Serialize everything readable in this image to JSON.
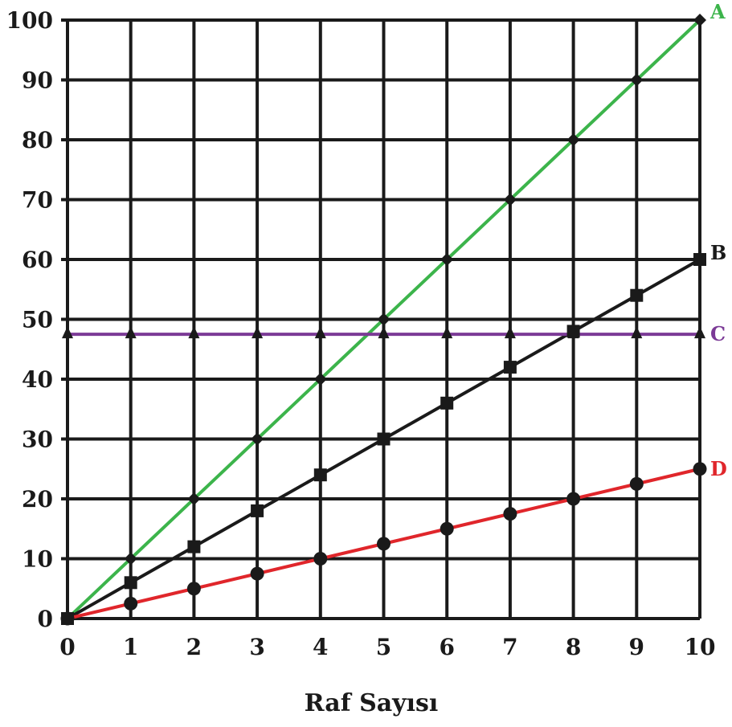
{
  "chart_data": {
    "type": "line",
    "title": "",
    "xlabel": "Raf Sayısı",
    "ylabel": "",
    "xlim": [
      0,
      10
    ],
    "ylim": [
      0,
      100
    ],
    "grid": true,
    "x": [
      0,
      1,
      2,
      3,
      4,
      5,
      6,
      7,
      8,
      9,
      10
    ],
    "x_ticks": [
      "0",
      "1",
      "2",
      "3",
      "4",
      "5",
      "6",
      "7",
      "8",
      "9",
      "10"
    ],
    "y_ticks": [
      "0",
      "10",
      "20",
      "30",
      "40",
      "50",
      "60",
      "70",
      "80",
      "90",
      "100"
    ],
    "series": [
      {
        "name": "A",
        "color": "#3cb44b",
        "marker": "diamond",
        "values": [
          0,
          10,
          20,
          30,
          40,
          50,
          60,
          70,
          80,
          90,
          100
        ]
      },
      {
        "name": "B",
        "color": "#1a1a1a",
        "marker": "square",
        "values": [
          0,
          6,
          12,
          18,
          24,
          30,
          36,
          42,
          48,
          54,
          60
        ]
      },
      {
        "name": "C",
        "color": "#7b3a96",
        "marker": "triangle",
        "values": [
          47.5,
          47.5,
          47.5,
          47.5,
          47.5,
          47.5,
          47.5,
          47.5,
          47.5,
          47.5,
          47.5
        ]
      },
      {
        "name": "D",
        "color": "#e0262b",
        "marker": "circle",
        "values": [
          0,
          2.5,
          5,
          7.5,
          10,
          12.5,
          15,
          17.5,
          20,
          22.5,
          25
        ]
      }
    ]
  }
}
